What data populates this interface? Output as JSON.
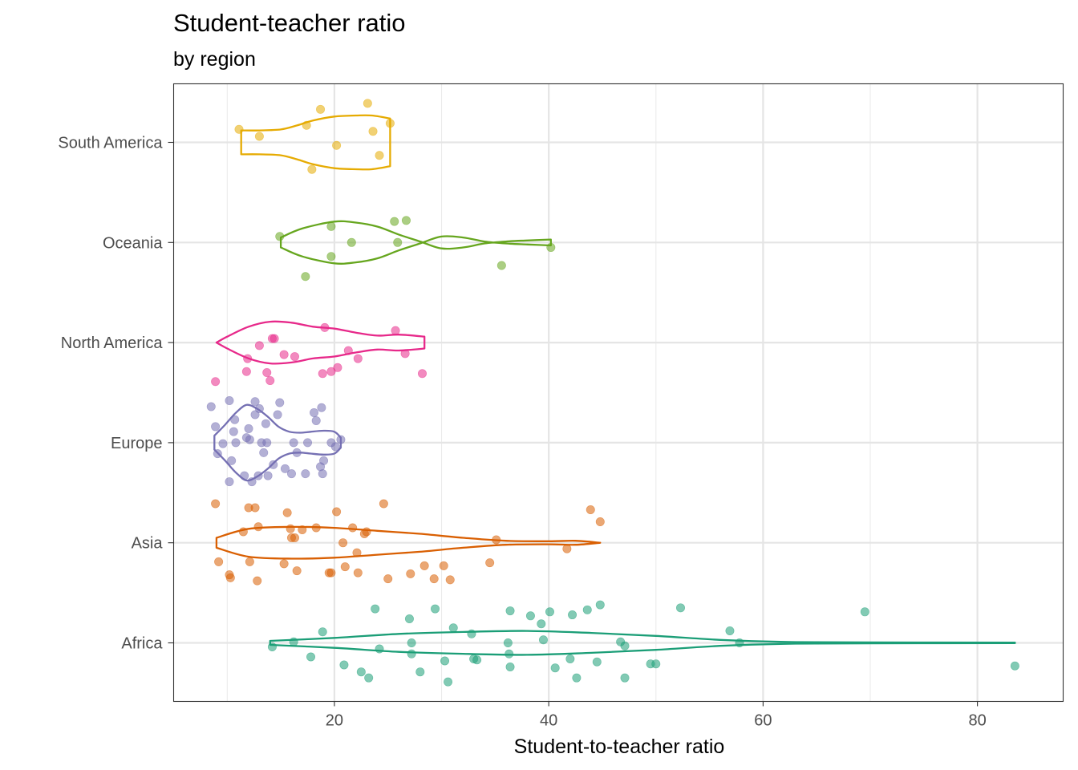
{
  "chart_data": {
    "type": "violin",
    "title": "Student-teacher ratio",
    "subtitle": "by region",
    "xlabel": "Student-to-teacher ratio",
    "ylabel": "",
    "xlim": [
      5,
      88
    ],
    "x_ticks": [
      20,
      40,
      60,
      80
    ],
    "x_tick_labels": [
      "20",
      "40",
      "60",
      "80"
    ],
    "grid": true,
    "legend": "none",
    "categories": [
      "Africa",
      "Asia",
      "Europe",
      "North America",
      "Oceania",
      "South America"
    ],
    "series": [
      {
        "category": "Africa",
        "color": "#1B9E77",
        "violin_min": 14.0,
        "violin_max": 83.5,
        "violin_profile": [
          [
            14.0,
            0.02
          ],
          [
            20.0,
            0.05
          ],
          [
            26.0,
            0.09
          ],
          [
            32.0,
            0.11
          ],
          [
            38.0,
            0.12
          ],
          [
            44.0,
            0.1
          ],
          [
            50.0,
            0.07
          ],
          [
            56.0,
            0.03
          ],
          [
            62.0,
            0.01
          ],
          [
            70.0,
            0.005
          ],
          [
            83.5,
            0.003
          ]
        ],
        "points": [
          [
            14.2,
            -0.04
          ],
          [
            16.2,
            0.01
          ],
          [
            17.8,
            -0.14
          ],
          [
            18.9,
            0.11
          ],
          [
            20.9,
            -0.22
          ],
          [
            22.5,
            -0.29
          ],
          [
            23.2,
            -0.35
          ],
          [
            23.8,
            0.34
          ],
          [
            24.2,
            -0.06
          ],
          [
            27.0,
            0.24
          ],
          [
            27.2,
            -0.11
          ],
          [
            27.2,
            0.0
          ],
          [
            28.0,
            -0.29
          ],
          [
            29.4,
            0.34
          ],
          [
            30.3,
            -0.18
          ],
          [
            30.6,
            -0.39
          ],
          [
            31.1,
            0.15
          ],
          [
            32.8,
            0.09
          ],
          [
            33.0,
            -0.16
          ],
          [
            33.3,
            -0.17
          ],
          [
            36.2,
            0.0
          ],
          [
            36.3,
            -0.11
          ],
          [
            36.4,
            0.32
          ],
          [
            36.4,
            -0.24
          ],
          [
            38.3,
            0.27
          ],
          [
            39.3,
            0.19
          ],
          [
            39.5,
            0.03
          ],
          [
            40.1,
            0.31
          ],
          [
            40.6,
            -0.25
          ],
          [
            42.0,
            -0.16
          ],
          [
            42.2,
            0.28
          ],
          [
            42.6,
            -0.35
          ],
          [
            43.6,
            0.33
          ],
          [
            44.5,
            -0.19
          ],
          [
            44.8,
            0.38
          ],
          [
            46.7,
            0.01
          ],
          [
            47.1,
            -0.35
          ],
          [
            47.1,
            -0.03
          ],
          [
            49.5,
            -0.21
          ],
          [
            50.0,
            -0.21
          ],
          [
            52.3,
            0.35
          ],
          [
            56.9,
            0.12
          ],
          [
            57.8,
            0.0
          ],
          [
            69.5,
            0.31
          ],
          [
            83.5,
            -0.23
          ]
        ]
      },
      {
        "category": "Asia",
        "color": "#D95F02",
        "violin_min": 9.0,
        "violin_max": 44.8,
        "violin_profile": [
          [
            9.0,
            0.05
          ],
          [
            12.0,
            0.14
          ],
          [
            16.0,
            0.16
          ],
          [
            20.0,
            0.15
          ],
          [
            24.0,
            0.12
          ],
          [
            28.0,
            0.09
          ],
          [
            32.0,
            0.05
          ],
          [
            36.0,
            0.02
          ],
          [
            40.0,
            0.015
          ],
          [
            42.5,
            0.02
          ],
          [
            44.8,
            0.0
          ]
        ],
        "points": [
          [
            8.9,
            0.39
          ],
          [
            9.2,
            -0.19
          ],
          [
            10.2,
            -0.32
          ],
          [
            10.3,
            -0.35
          ],
          [
            11.5,
            0.11
          ],
          [
            12.0,
            0.35
          ],
          [
            12.1,
            -0.19
          ],
          [
            12.6,
            0.35
          ],
          [
            12.9,
            0.16
          ],
          [
            12.8,
            -0.38
          ],
          [
            15.3,
            -0.21
          ],
          [
            15.6,
            0.3
          ],
          [
            15.9,
            0.14
          ],
          [
            16.0,
            0.05
          ],
          [
            16.3,
            0.05
          ],
          [
            16.5,
            -0.28
          ],
          [
            17.0,
            0.13
          ],
          [
            18.3,
            0.15
          ],
          [
            19.5,
            -0.3
          ],
          [
            19.7,
            -0.3
          ],
          [
            20.2,
            0.31
          ],
          [
            20.8,
            0.0
          ],
          [
            21.0,
            -0.24
          ],
          [
            21.7,
            0.15
          ],
          [
            22.1,
            -0.1
          ],
          [
            22.2,
            -0.3
          ],
          [
            22.8,
            0.09
          ],
          [
            23.0,
            0.11
          ],
          [
            24.6,
            0.39
          ],
          [
            25.0,
            -0.36
          ],
          [
            27.1,
            -0.31
          ],
          [
            28.4,
            -0.23
          ],
          [
            29.3,
            -0.36
          ],
          [
            30.2,
            -0.23
          ],
          [
            30.8,
            -0.37
          ],
          [
            34.5,
            -0.2
          ],
          [
            35.1,
            0.03
          ],
          [
            41.7,
            -0.06
          ],
          [
            43.9,
            0.33
          ],
          [
            44.8,
            0.21
          ]
        ]
      },
      {
        "category": "Europe",
        "color": "#7570B3",
        "violin_min": 8.8,
        "violin_max": 20.6,
        "violin_profile": [
          [
            8.8,
            0.07
          ],
          [
            9.8,
            0.18
          ],
          [
            10.8,
            0.3
          ],
          [
            11.8,
            0.38
          ],
          [
            12.8,
            0.34
          ],
          [
            13.8,
            0.26
          ],
          [
            14.8,
            0.16
          ],
          [
            15.8,
            0.11
          ],
          [
            16.8,
            0.1
          ],
          [
            17.8,
            0.11
          ],
          [
            19.0,
            0.12
          ],
          [
            20.0,
            0.11
          ],
          [
            20.6,
            0.05
          ]
        ],
        "points": [
          [
            8.5,
            0.36
          ],
          [
            8.9,
            0.16
          ],
          [
            9.1,
            -0.11
          ],
          [
            9.6,
            -0.01
          ],
          [
            10.2,
            -0.39
          ],
          [
            10.2,
            0.42
          ],
          [
            10.4,
            -0.18
          ],
          [
            10.6,
            0.11
          ],
          [
            10.7,
            0.23
          ],
          [
            10.8,
            0.0
          ],
          [
            11.6,
            -0.33
          ],
          [
            11.8,
            0.05
          ],
          [
            12.0,
            0.14
          ],
          [
            12.1,
            0.03
          ],
          [
            12.3,
            -0.39
          ],
          [
            12.6,
            0.28
          ],
          [
            12.6,
            0.41
          ],
          [
            12.9,
            -0.33
          ],
          [
            13.0,
            0.34
          ],
          [
            13.2,
            0.0
          ],
          [
            13.4,
            -0.1
          ],
          [
            13.6,
            0.19
          ],
          [
            13.7,
            0.0
          ],
          [
            13.8,
            -0.33
          ],
          [
            14.3,
            -0.22
          ],
          [
            14.7,
            0.28
          ],
          [
            14.9,
            0.4
          ],
          [
            15.4,
            -0.26
          ],
          [
            16.0,
            -0.31
          ],
          [
            16.2,
            0.0
          ],
          [
            16.5,
            -0.1
          ],
          [
            17.3,
            -0.31
          ],
          [
            17.5,
            0.0
          ],
          [
            18.1,
            0.3
          ],
          [
            18.3,
            0.22
          ],
          [
            18.7,
            -0.24
          ],
          [
            18.8,
            0.35
          ],
          [
            18.9,
            -0.31
          ],
          [
            19.0,
            -0.18
          ],
          [
            19.7,
            0.0
          ],
          [
            20.1,
            -0.04
          ],
          [
            20.6,
            0.03
          ]
        ]
      },
      {
        "category": "North America",
        "color": "#E7298A",
        "violin_min": 9.0,
        "violin_max": 28.4,
        "violin_profile": [
          [
            9.0,
            0.0
          ],
          [
            10.0,
            0.06
          ],
          [
            12.0,
            0.16
          ],
          [
            14.0,
            0.21
          ],
          [
            16.0,
            0.2
          ],
          [
            18.0,
            0.16
          ],
          [
            20.0,
            0.14
          ],
          [
            22.0,
            0.1
          ],
          [
            24.0,
            0.07
          ],
          [
            26.0,
            0.08
          ],
          [
            28.4,
            0.06
          ]
        ],
        "points": [
          [
            8.9,
            -0.39
          ],
          [
            11.8,
            -0.29
          ],
          [
            11.9,
            -0.16
          ],
          [
            13.0,
            -0.03
          ],
          [
            13.7,
            -0.3
          ],
          [
            14.0,
            -0.38
          ],
          [
            14.2,
            0.04
          ],
          [
            14.4,
            0.04
          ],
          [
            15.3,
            -0.12
          ],
          [
            16.3,
            -0.14
          ],
          [
            18.9,
            -0.31
          ],
          [
            19.1,
            0.15
          ],
          [
            19.7,
            -0.29
          ],
          [
            20.3,
            -0.25
          ],
          [
            21.3,
            -0.08
          ],
          [
            22.2,
            -0.16
          ],
          [
            25.7,
            0.12
          ],
          [
            26.6,
            -0.11
          ],
          [
            28.2,
            -0.31
          ]
        ]
      },
      {
        "category": "Oceania",
        "color": "#66A61E",
        "violin_min": 15.0,
        "violin_max": 40.2,
        "violin_profile": [
          [
            15.0,
            0.05
          ],
          [
            17.0,
            0.14
          ],
          [
            20.0,
            0.21
          ],
          [
            22.0,
            0.2
          ],
          [
            24.0,
            0.16
          ],
          [
            26.0,
            0.08
          ],
          [
            28.0,
            0.01
          ],
          [
            30.0,
            -0.06
          ],
          [
            32.0,
            -0.05
          ],
          [
            34.0,
            -0.01
          ],
          [
            36.0,
            0.01
          ],
          [
            38.0,
            0.02
          ],
          [
            40.2,
            0.03
          ]
        ],
        "points": [
          [
            14.9,
            0.06
          ],
          [
            17.3,
            -0.34
          ],
          [
            19.7,
            0.16
          ],
          [
            19.7,
            -0.14
          ],
          [
            21.6,
            0.0
          ],
          [
            25.6,
            0.21
          ],
          [
            25.9,
            0.0
          ],
          [
            26.7,
            0.22
          ],
          [
            35.6,
            -0.23
          ],
          [
            40.2,
            -0.05
          ]
        ]
      },
      {
        "category": "South America",
        "color": "#E6AB02",
        "violin_min": 11.3,
        "violin_max": 25.2,
        "violin_profile": [
          [
            11.3,
            0.12
          ],
          [
            13.0,
            0.12
          ],
          [
            15.0,
            0.13
          ],
          [
            16.5,
            0.17
          ],
          [
            18.0,
            0.22
          ],
          [
            20.0,
            0.26
          ],
          [
            22.0,
            0.27
          ],
          [
            23.5,
            0.27
          ],
          [
            25.2,
            0.24
          ]
        ],
        "points": [
          [
            11.1,
            0.13
          ],
          [
            13.0,
            0.06
          ],
          [
            17.4,
            0.17
          ],
          [
            17.9,
            -0.27
          ],
          [
            18.7,
            0.33
          ],
          [
            20.2,
            -0.03
          ],
          [
            23.1,
            0.39
          ],
          [
            23.6,
            0.11
          ],
          [
            24.2,
            -0.13
          ],
          [
            25.2,
            0.19
          ]
        ]
      }
    ]
  }
}
